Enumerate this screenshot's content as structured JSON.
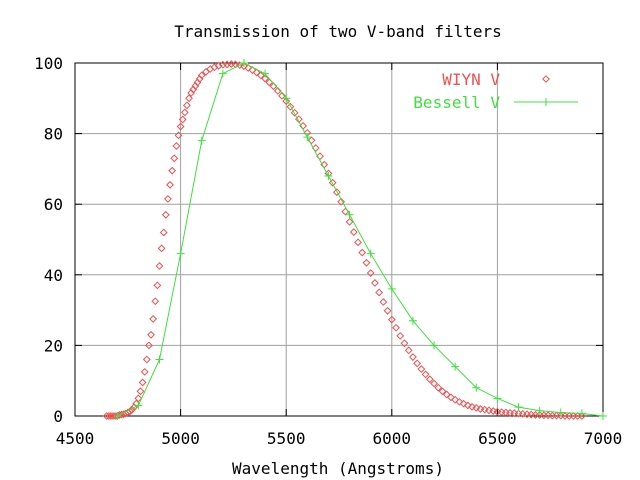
{
  "chart_data": {
    "type": "scatter",
    "title": "Transmission of two V-band filters",
    "xlabel": "Wavelength (Angstroms)",
    "ylabel": "",
    "xlim": [
      4500,
      7000
    ],
    "ylim": [
      0,
      100
    ],
    "x_ticks": [
      4500,
      5000,
      5500,
      6000,
      6500,
      7000
    ],
    "y_ticks": [
      0,
      20,
      40,
      60,
      80,
      100
    ],
    "grid": true,
    "legend_position": "top-right",
    "series": [
      {
        "name": "WIYN V",
        "style": "points",
        "marker": "diamond",
        "color": "#f05050",
        "x": [
          4650,
          4660,
          4670,
          4680,
          4690,
          4700,
          4710,
          4720,
          4730,
          4740,
          4750,
          4760,
          4770,
          4780,
          4790,
          4800,
          4810,
          4820,
          4830,
          4840,
          4850,
          4860,
          4870,
          4880,
          4890,
          4900,
          4910,
          4920,
          4930,
          4940,
          4950,
          4960,
          4970,
          4980,
          4990,
          5000,
          5010,
          5020,
          5030,
          5040,
          5050,
          5060,
          5070,
          5080,
          5090,
          5100,
          5120,
          5140,
          5160,
          5180,
          5200,
          5220,
          5240,
          5260,
          5280,
          5300,
          5320,
          5340,
          5360,
          5380,
          5400,
          5420,
          5440,
          5460,
          5480,
          5500,
          5520,
          5540,
          5560,
          5580,
          5600,
          5620,
          5640,
          5660,
          5680,
          5700,
          5720,
          5740,
          5760,
          5780,
          5800,
          5820,
          5840,
          5860,
          5880,
          5900,
          5920,
          5940,
          5960,
          5980,
          6000,
          6020,
          6040,
          6060,
          6080,
          6100,
          6120,
          6140,
          6160,
          6180,
          6200,
          6220,
          6240,
          6260,
          6280,
          6300,
          6320,
          6340,
          6360,
          6380,
          6400,
          6420,
          6440,
          6460,
          6480,
          6500,
          6520,
          6540,
          6560,
          6580,
          6600,
          6620,
          6640,
          6660,
          6680,
          6700,
          6720,
          6740,
          6760,
          6780,
          6800,
          6820,
          6840,
          6860,
          6880,
          6900
        ],
        "y": [
          0,
          0,
          0,
          0,
          0,
          0,
          0.3,
          0.4,
          0.5,
          0.7,
          1.0,
          1.3,
          1.8,
          2.5,
          3.5,
          5.0,
          7.0,
          9.5,
          12.5,
          16,
          20,
          23,
          27.5,
          32.5,
          37,
          42.5,
          47.5,
          52,
          57,
          61.5,
          65.5,
          69.5,
          73,
          76.5,
          79.5,
          82,
          84,
          86,
          88,
          90,
          91.5,
          92.5,
          93.5,
          94.5,
          95.5,
          96.5,
          97.5,
          98.3,
          98.8,
          99.2,
          99.5,
          99.6,
          99.7,
          99.6,
          99.4,
          99.1,
          98.6,
          98.0,
          97.3,
          96.5,
          95.6,
          94.5,
          93.4,
          92.1,
          90.7,
          89.2,
          87.6,
          85.9,
          84.1,
          82.2,
          80.2,
          78.1,
          75.9,
          73.6,
          71.2,
          68.7,
          66.1,
          63.4,
          60.7,
          57.9,
          55.0,
          52.1,
          49.2,
          46.3,
          43.4,
          40.5,
          37.7,
          35.0,
          32.3,
          29.8,
          27.3,
          25.0,
          22.7,
          20.6,
          18.6,
          16.7,
          14.9,
          13.3,
          11.8,
          10.4,
          9.2,
          8.0,
          7.0,
          6.1,
          5.3,
          4.6,
          4.0,
          3.5,
          3.0,
          2.6,
          2.3,
          2.0,
          1.8,
          1.6,
          1.4,
          1.2,
          1.1,
          1.0,
          0.9,
          0.8,
          0.7,
          0.6,
          0.5,
          0.4,
          0.3,
          0.3,
          0.2,
          0.2,
          0.1,
          0.1,
          0.1,
          0,
          0,
          0,
          0,
          0
        ]
      },
      {
        "name": "Bessell V",
        "style": "linespoints",
        "marker": "plus",
        "color": "#40e040",
        "x": [
          4700,
          4800,
          4900,
          5000,
          5100,
          5200,
          5300,
          5400,
          5500,
          5600,
          5700,
          5800,
          5900,
          6000,
          6100,
          6200,
          6300,
          6400,
          6500,
          6600,
          6700,
          6800,
          6900,
          7000
        ],
        "y": [
          0,
          3,
          16,
          46,
          78,
          97,
          100,
          97,
          90,
          79,
          68,
          57,
          46,
          36,
          27,
          20,
          14,
          8,
          5,
          2.5,
          1.5,
          1,
          0.7,
          0
        ]
      }
    ]
  }
}
